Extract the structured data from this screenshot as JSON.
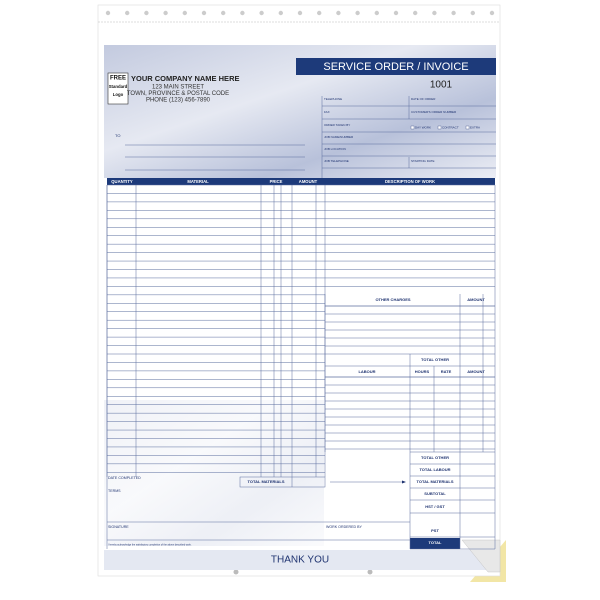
{
  "logo": {
    "line1": "FREE",
    "line2": "Standard",
    "line3": "Logo"
  },
  "company": {
    "name": "YOUR COMPANY NAME HERE",
    "street": "123 MAIN STREET",
    "city": "TOWN, PROVINCE & POSTAL CODE",
    "phone": "PHONE (123) 456-7890"
  },
  "title": "SERVICE ORDER / INVOICE",
  "number": "1001",
  "to_label": "TO",
  "fields": {
    "telephone": "TELEPHONE",
    "date_of_order": "DATE OF ORDER",
    "fax": "FAX",
    "customer_order_number": "CUSTOMER'S ORDER NUMBER",
    "order_taken_by": "ORDER TAKEN BY",
    "day_work": "DAY WORK",
    "contract": "CONTRACT",
    "extra": "EXTRA",
    "job_name": "JOB NAME/NUMBER",
    "job_location": "JOB LOCATION",
    "job_telephone": "JOB TELEPHONE",
    "starting_date": "STARTING DATE"
  },
  "table_headers": {
    "quantity": "QUANTITY",
    "material": "MATERIAL",
    "price": "PRICE",
    "amount": "AMOUNT",
    "description": "DESCRIPTION OF WORK"
  },
  "other_charges": {
    "header": "OTHER CHARGES",
    "amount": "AMOUNT",
    "total": "TOTAL OTHER"
  },
  "labour": {
    "header": "LABOUR",
    "hours": "HOURS",
    "rate": "RATE",
    "amount": "AMOUNT"
  },
  "totals": [
    "TOTAL OTHER",
    "TOTAL LABOUR",
    "TOTAL MATERIALS",
    "SUBTOTAL",
    "HST / GST",
    "PST",
    "TOTAL"
  ],
  "bottom": {
    "date_completed": "DATE COMPLETED",
    "total_materials": "TOTAL MATERIALS",
    "terms": "TERMS",
    "signature": "SIGNATURE",
    "work_ordered_by": "WORK ORDERED BY",
    "fine_print": "I hereby acknowledge the satisfactory completion of the above described work."
  },
  "footer": "THANK YOU"
}
